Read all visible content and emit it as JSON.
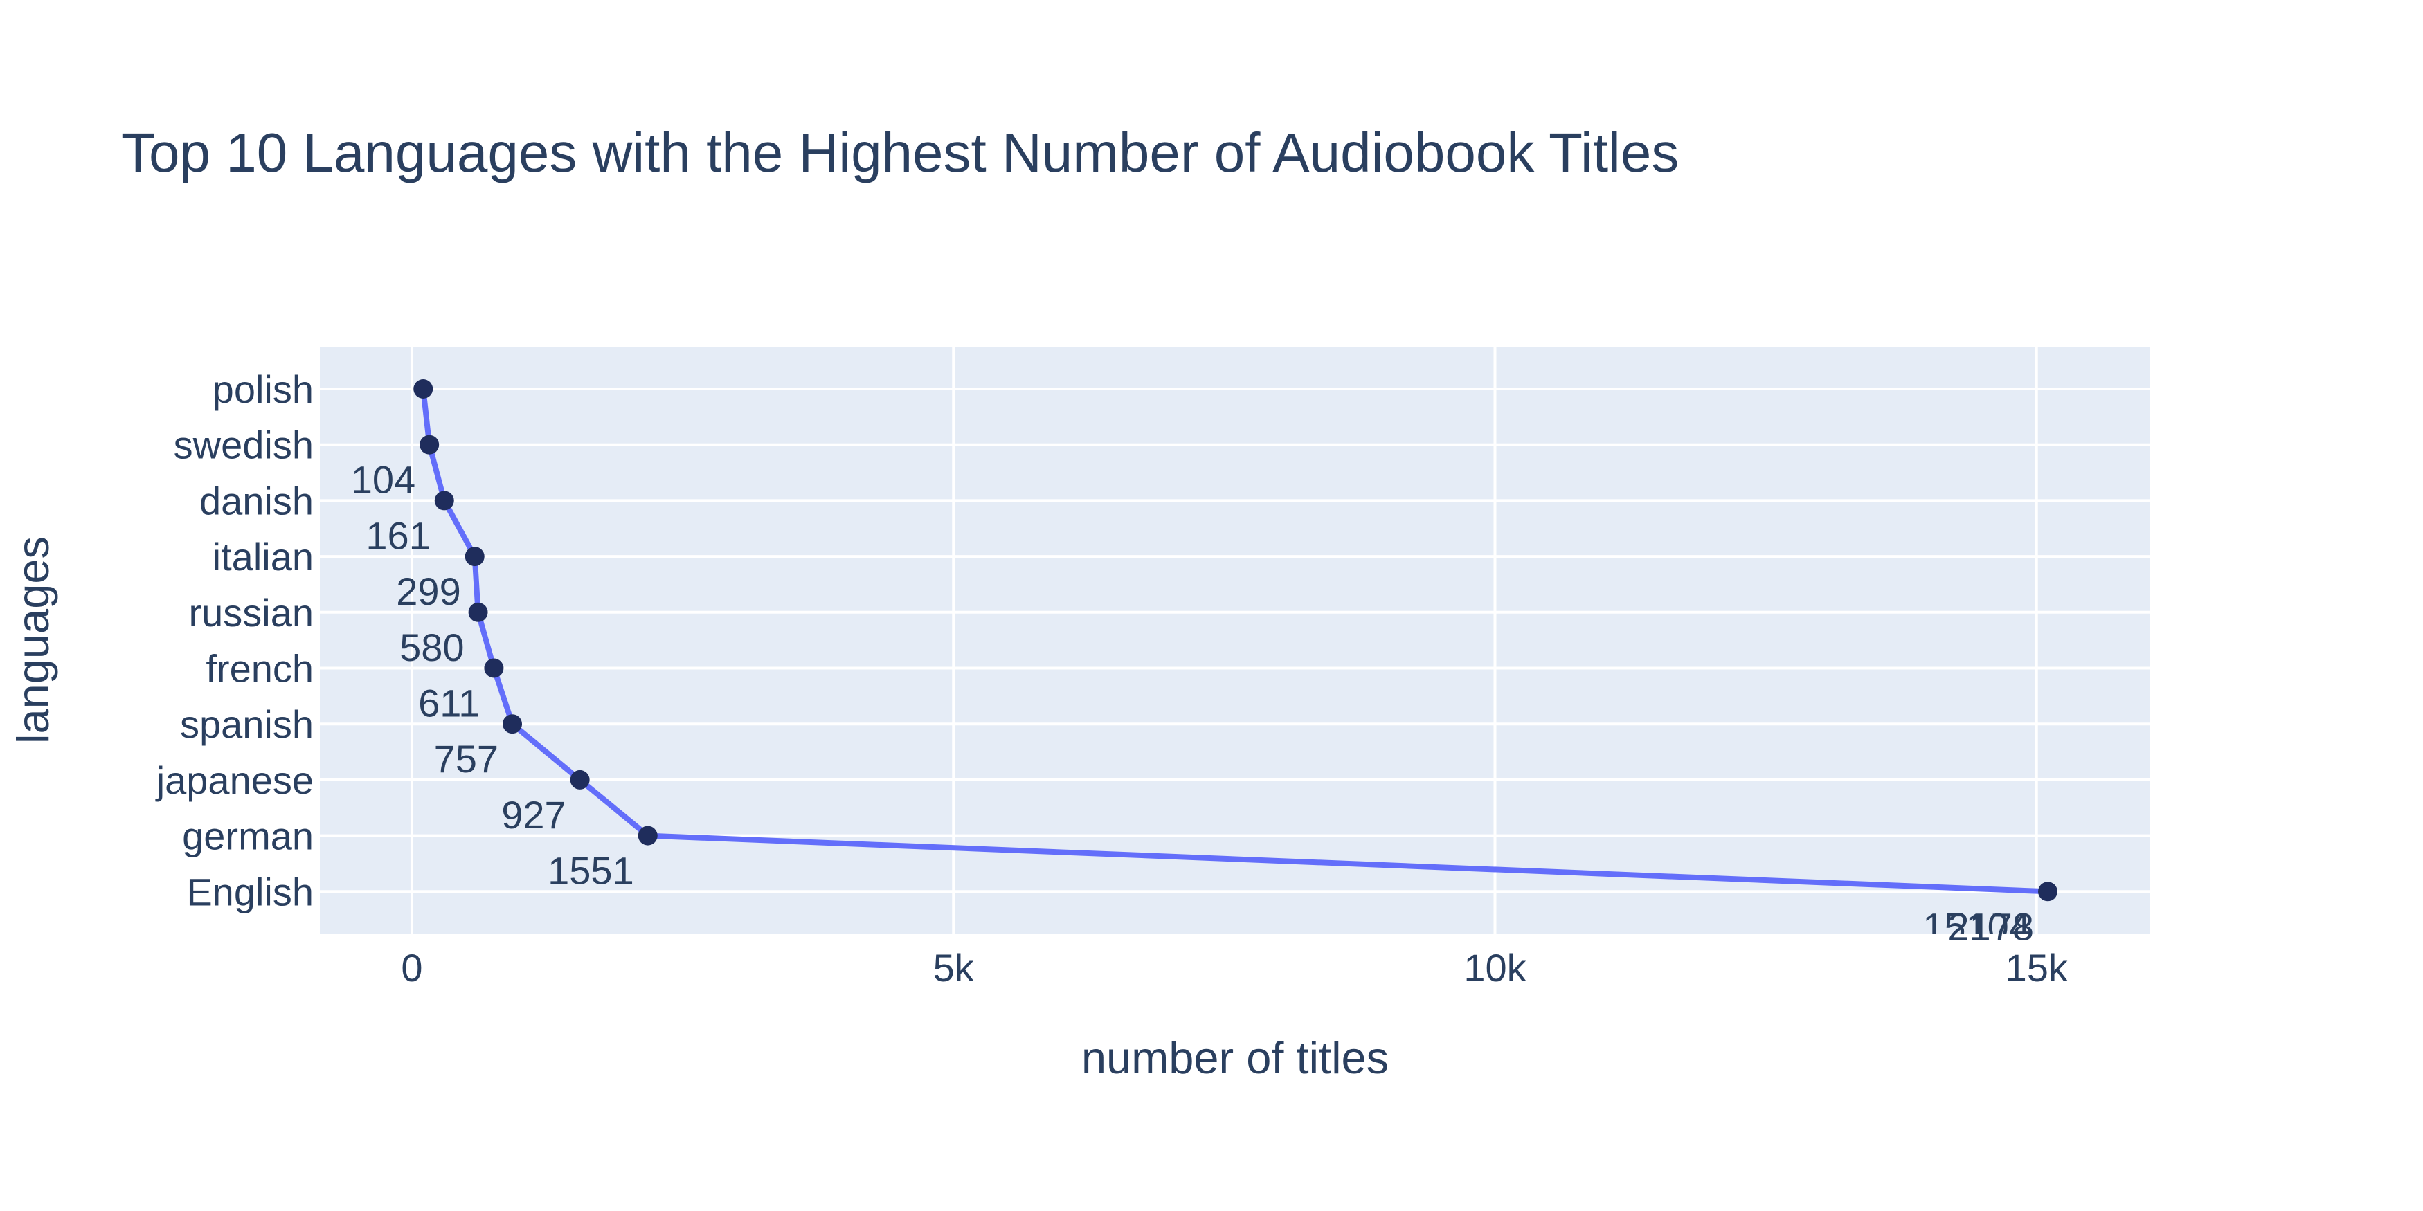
{
  "chart_data": {
    "type": "line",
    "title": "Top 10 Languages with the Highest Number of Audiobook Titles",
    "xlabel": "number of titles",
    "ylabel": "languages",
    "xlim": [
      -850,
      16050
    ],
    "x_ticks": [
      {
        "value": 0,
        "label": "0"
      },
      {
        "value": 5000,
        "label": "5k"
      },
      {
        "value": 10000,
        "label": "10k"
      },
      {
        "value": 15000,
        "label": "15k"
      }
    ],
    "categories": [
      "polish",
      "swedish",
      "danish",
      "italian",
      "russian",
      "french",
      "spanish",
      "japanese",
      "german",
      "English"
    ],
    "series": [
      {
        "values": [
          104,
          161,
          299,
          580,
          611,
          757,
          927,
          1551,
          2178,
          15104
        ],
        "labels": [
          "",
          "104",
          "161",
          "299",
          "580",
          "611",
          "757",
          "927",
          "1551",
          "2178"
        ],
        "final_label": "15104"
      }
    ],
    "grid": true,
    "legend": "none",
    "colors": {
      "plot_background": "#e5ecf6",
      "grid": "#ffffff",
      "line": "#636efa",
      "marker": "#1f2d5c",
      "text": "#2a3f5f"
    }
  }
}
